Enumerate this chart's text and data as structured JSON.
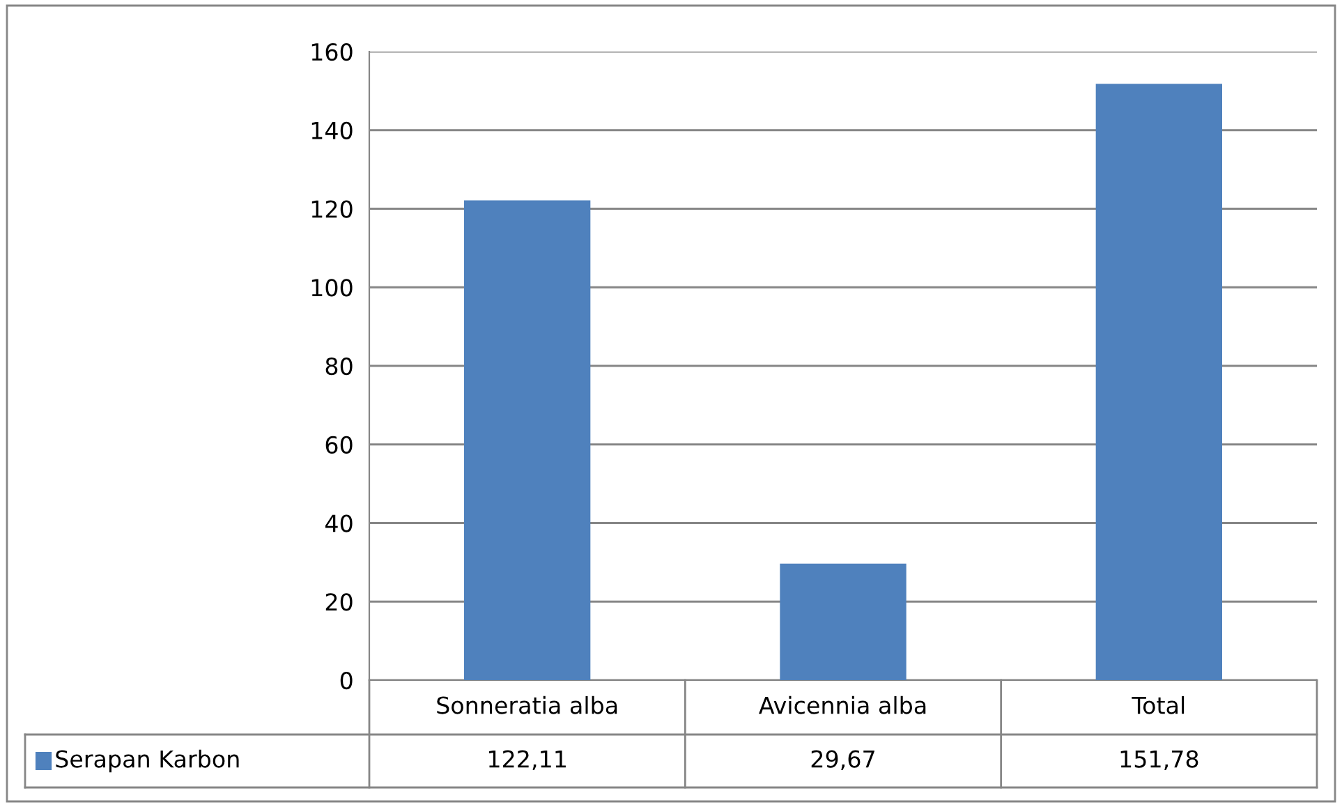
{
  "chart_data": {
    "type": "bar",
    "categories": [
      "Sonneratia alba",
      "Avicennia alba",
      "Total"
    ],
    "series": [
      {
        "name": "Serapan Karbon",
        "color": "#4f81bd",
        "values": [
          122.11,
          29.67,
          151.78
        ],
        "value_labels": [
          "122,11",
          "29,67",
          "151,78"
        ]
      }
    ],
    "ylim": [
      0,
      160
    ],
    "yticks": [
      0,
      20,
      40,
      60,
      80,
      100,
      120,
      140,
      160
    ],
    "grid": "y",
    "legend": "bottom"
  }
}
